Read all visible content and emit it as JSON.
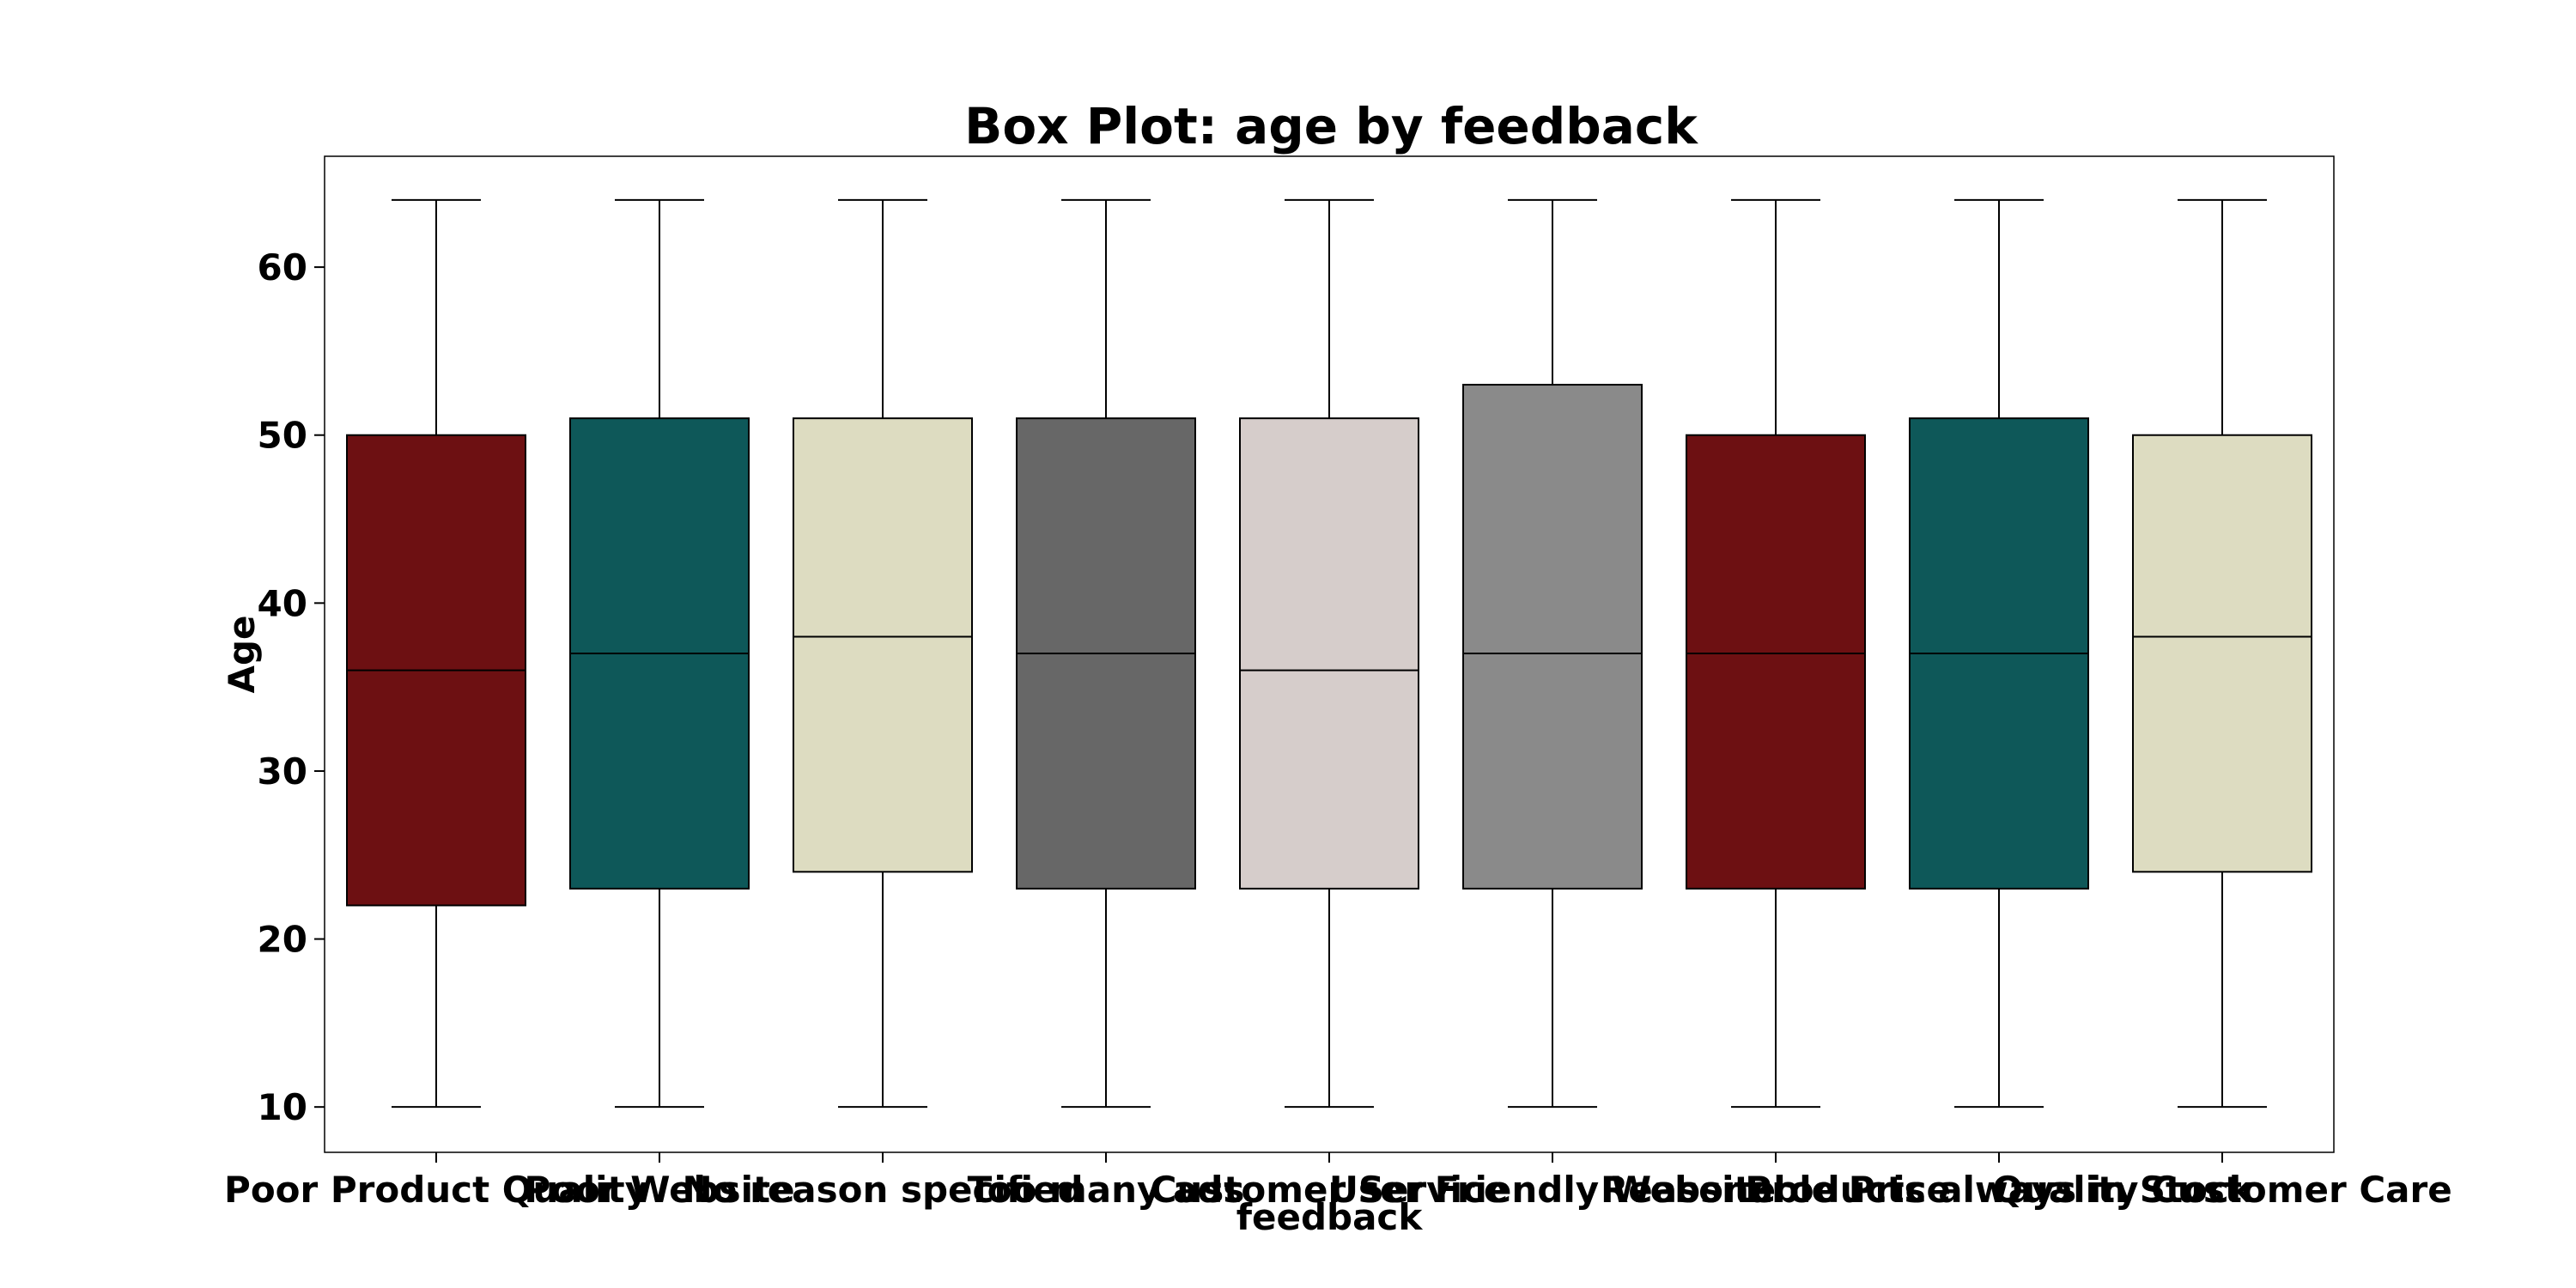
{
  "chart_data": {
    "type": "box",
    "title": "Box Plot: age by feedback",
    "xlabel": "feedback",
    "ylabel": "Age",
    "ylim": [
      7.3,
      66.6
    ],
    "yticks": [
      10,
      20,
      30,
      40,
      50,
      60
    ],
    "grid": false,
    "categories": [
      "Poor Product Quality",
      "Poor Website",
      "No reason specified",
      "Too many ads",
      "Customer Service",
      "User Friendly Website",
      "Reasonable Price",
      "Products always in Stock",
      "Quality Customer Care"
    ],
    "boxes": [
      {
        "whisker_low": 10,
        "q1": 22,
        "median": 36,
        "q3": 50,
        "whisker_high": 64,
        "color": "#6d1012"
      },
      {
        "whisker_low": 10,
        "q1": 23,
        "median": 37,
        "q3": 51,
        "whisker_high": 64,
        "color": "#0e5859"
      },
      {
        "whisker_low": 10,
        "q1": 24,
        "median": 38,
        "q3": 51,
        "whisker_high": 64,
        "color": "#dddcc1"
      },
      {
        "whisker_low": 10,
        "q1": 23,
        "median": 37,
        "q3": 51,
        "whisker_high": 64,
        "color": "#676767"
      },
      {
        "whisker_low": 10,
        "q1": 23,
        "median": 36,
        "q3": 51,
        "whisker_high": 64,
        "color": "#d6cdcb"
      },
      {
        "whisker_low": 10,
        "q1": 23,
        "median": 37,
        "q3": 53,
        "whisker_high": 64,
        "color": "#8a8a8a"
      },
      {
        "whisker_low": 10,
        "q1": 23,
        "median": 37,
        "q3": 50,
        "whisker_high": 64,
        "color": "#6d1012"
      },
      {
        "whisker_low": 10,
        "q1": 23,
        "median": 37,
        "q3": 51,
        "whisker_high": 64,
        "color": "#0e5859"
      },
      {
        "whisker_low": 10,
        "q1": 24,
        "median": 38,
        "q3": 50,
        "whisker_high": 64,
        "color": "#dddcc1"
      }
    ]
  }
}
